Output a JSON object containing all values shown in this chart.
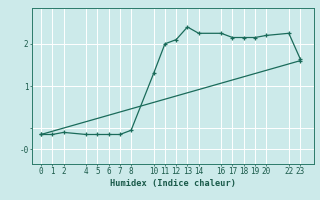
{
  "title": "",
  "xlabel": "Humidex (Indice chaleur)",
  "bg_color": "#cceaea",
  "grid_color": "#ffffff",
  "line_color": "#1a6b5a",
  "x_ticks": [
    0,
    1,
    2,
    4,
    5,
    6,
    7,
    8,
    10,
    11,
    12,
    13,
    14,
    16,
    17,
    18,
    19,
    20,
    22,
    23
  ],
  "x_tick_labels": [
    "0",
    "1",
    "2",
    "4",
    "5",
    "6",
    "7",
    "8",
    "10",
    "11",
    "12",
    "13",
    "14",
    "16",
    "17",
    "18",
    "19",
    "20",
    "22",
    "23"
  ],
  "yticks": [
    -0.5,
    0,
    1,
    2
  ],
  "ytick_labels": [
    "-0",
    "",
    "1",
    "2"
  ],
  "ylim": [
    -0.85,
    2.85
  ],
  "xlim": [
    -0.8,
    24.2
  ],
  "line1_x": [
    0,
    1,
    2,
    4,
    5,
    6,
    7,
    8,
    10,
    11,
    12,
    13,
    14,
    16,
    17,
    18,
    19,
    20,
    22,
    23
  ],
  "line1_y": [
    -0.15,
    -0.15,
    -0.1,
    -0.15,
    -0.15,
    -0.15,
    -0.15,
    -0.05,
    1.3,
    2.0,
    2.1,
    2.4,
    2.25,
    2.25,
    2.15,
    2.15,
    2.15,
    2.2,
    2.25,
    1.65
  ],
  "line2_x": [
    0,
    23
  ],
  "line2_y": [
    -0.15,
    1.6
  ]
}
